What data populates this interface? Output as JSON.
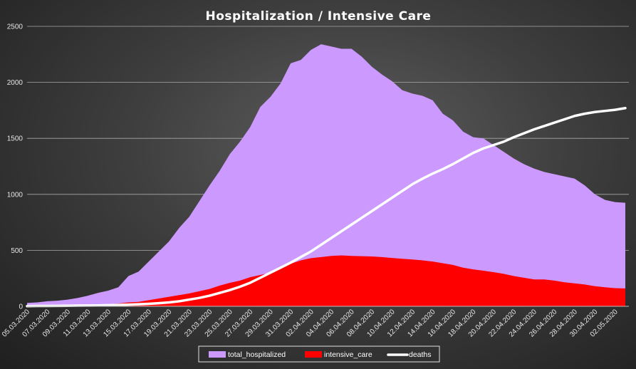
{
  "chart_data": {
    "type": "area",
    "title": "Hospitalization  / Intensive  Care",
    "xlabel": "",
    "ylabel": "",
    "ylim": [
      0,
      2500
    ],
    "yticks": [
      0,
      500,
      1000,
      1500,
      2000,
      2500
    ],
    "grid": true,
    "legend_position": "bottom",
    "x_tick_labels": [
      "05.03.2020",
      "07.03.2020",
      "09.03.2020",
      "11.03.2020",
      "13.03.2020",
      "15.03.2020",
      "17.03.2020",
      "19.03.2020",
      "21.03.2020",
      "23.03.2020",
      "25.03.2020",
      "27.03.2020",
      "29.03.2020",
      "31.03.2020",
      "02.04.2020",
      "04.04.2020",
      "06.04.2020",
      "08.04.2020",
      "10.04.2020",
      "12.04.2020",
      "14.04.2020",
      "16.04.2020",
      "18.04.2020",
      "20.04.2020",
      "22.04.2020",
      "24.04.2020",
      "26.04.2020",
      "28.04.2020",
      "30.04.2020",
      "02.05.2020"
    ],
    "x": [
      "05.03.2020",
      "06.03.2020",
      "07.03.2020",
      "08.03.2020",
      "09.03.2020",
      "10.03.2020",
      "11.03.2020",
      "12.03.2020",
      "13.03.2020",
      "14.03.2020",
      "15.03.2020",
      "16.03.2020",
      "17.03.2020",
      "18.03.2020",
      "19.03.2020",
      "20.03.2020",
      "21.03.2020",
      "22.03.2020",
      "23.03.2020",
      "24.03.2020",
      "25.03.2020",
      "26.03.2020",
      "27.03.2020",
      "28.03.2020",
      "29.03.2020",
      "30.03.2020",
      "31.03.2020",
      "01.04.2020",
      "02.04.2020",
      "03.04.2020",
      "04.04.2020",
      "05.04.2020",
      "06.04.2020",
      "07.04.2020",
      "08.04.2020",
      "09.04.2020",
      "10.04.2020",
      "11.04.2020",
      "12.04.2020",
      "13.04.2020",
      "14.04.2020",
      "15.04.2020",
      "16.04.2020",
      "17.04.2020",
      "18.04.2020",
      "19.04.2020",
      "20.04.2020",
      "21.04.2020",
      "22.04.2020",
      "23.04.2020",
      "24.04.2020",
      "25.04.2020",
      "26.04.2020",
      "27.04.2020",
      "28.04.2020",
      "29.04.2020",
      "30.04.2020",
      "01.05.2020",
      "02.05.2020",
      "03.05.2020"
    ],
    "series": [
      {
        "name": "total_hospitalized",
        "kind": "area",
        "color": "#cc99ff",
        "values": [
          30,
          35,
          45,
          50,
          60,
          75,
          95,
          120,
          140,
          170,
          270,
          310,
          400,
          490,
          580,
          700,
          800,
          940,
          1080,
          1210,
          1360,
          1470,
          1600,
          1780,
          1870,
          1990,
          2170,
          2200,
          2290,
          2340,
          2320,
          2300,
          2300,
          2230,
          2140,
          2070,
          2010,
          1930,
          1900,
          1880,
          1840,
          1720,
          1660,
          1560,
          1510,
          1500,
          1440,
          1380,
          1320,
          1270,
          1230,
          1200,
          1180,
          1160,
          1140,
          1080,
          1000,
          950,
          930,
          925
        ]
      },
      {
        "name": "intensive_care",
        "kind": "area",
        "color": "#ff0000",
        "values": [
          5,
          6,
          8,
          8,
          10,
          12,
          14,
          16,
          20,
          25,
          35,
          40,
          55,
          70,
          85,
          100,
          115,
          135,
          155,
          185,
          210,
          230,
          260,
          280,
          300,
          340,
          380,
          410,
          430,
          440,
          450,
          455,
          450,
          448,
          445,
          440,
          432,
          425,
          418,
          410,
          400,
          385,
          370,
          345,
          330,
          318,
          305,
          290,
          270,
          255,
          240,
          240,
          230,
          215,
          205,
          195,
          180,
          170,
          162,
          160
        ]
      },
      {
        "name": "deaths",
        "kind": "line",
        "color": "#ffffff",
        "values": [
          2,
          3,
          3,
          4,
          5,
          6,
          7,
          8,
          10,
          12,
          15,
          18,
          22,
          28,
          35,
          45,
          60,
          75,
          95,
          120,
          145,
          175,
          210,
          255,
          300,
          345,
          390,
          440,
          490,
          550,
          610,
          670,
          730,
          790,
          850,
          910,
          970,
          1030,
          1090,
          1140,
          1185,
          1225,
          1270,
          1320,
          1370,
          1410,
          1440,
          1470,
          1510,
          1545,
          1580,
          1610,
          1640,
          1670,
          1700,
          1720,
          1735,
          1745,
          1755,
          1770
        ]
      }
    ]
  }
}
